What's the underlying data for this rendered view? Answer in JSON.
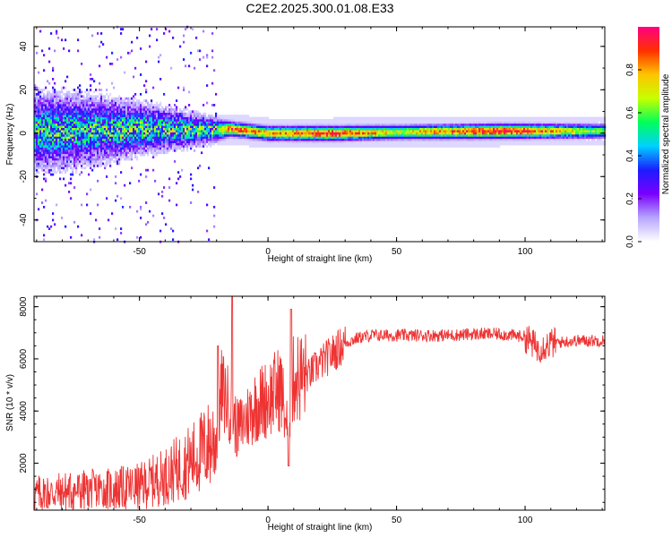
{
  "figure": {
    "title": "C2E2.2025.300.01.08.E33"
  },
  "chart_data": [
    {
      "type": "heatmap",
      "panel": "spectrogram",
      "xlabel": "Height of straight line (km)",
      "ylabel": "Frequency (Hz)",
      "xlim": [
        -91,
        131
      ],
      "ylim": [
        -50,
        49
      ],
      "xticks": [
        -50,
        0,
        50,
        100
      ],
      "yticks": [
        -40,
        -20,
        0,
        20,
        40
      ],
      "colorbar": {
        "label": "Normalized spectral amplitude",
        "range": [
          0,
          1
        ],
        "ticks": [
          0.0,
          0.2,
          0.4,
          0.6,
          0.8
        ],
        "colors": [
          "#ffffff",
          "#b6a6ff",
          "#7a00ff",
          "#1c1cff",
          "#00d0ff",
          "#00ff5a",
          "#c6ff00",
          "#ffc400",
          "#ff3000",
          "#ff0080"
        ]
      },
      "description_points": [
        {
          "x": -80,
          "center_hz": 1,
          "spread_hz": 9,
          "peak": 0.55
        },
        {
          "x": -50,
          "center_hz": 2,
          "spread_hz": 6,
          "peak": 0.6
        },
        {
          "x": -20,
          "center_hz": 1.5,
          "spread_hz": 3,
          "peak": 0.6
        },
        {
          "x": -15,
          "center_hz": 2,
          "spread_hz": 2,
          "peak": 0.9
        },
        {
          "x": 0,
          "center_hz": 0,
          "spread_hz": 2,
          "peak": 0.8
        },
        {
          "x": 25,
          "center_hz": 0,
          "spread_hz": 2,
          "peak": 0.95
        },
        {
          "x": 50,
          "center_hz": 0.5,
          "spread_hz": 2,
          "peak": 0.7
        },
        {
          "x": 90,
          "center_hz": 1,
          "spread_hz": 2,
          "peak": 1.0
        },
        {
          "x": 130,
          "center_hz": 1,
          "spread_hz": 2,
          "peak": 0.6
        }
      ]
    },
    {
      "type": "line",
      "panel": "snr",
      "xlabel": "Height of straight line (km)",
      "ylabel": "SNR (10 * v/v)",
      "xlim": [
        -91,
        131
      ],
      "ylim": [
        200,
        8400
      ],
      "xticks": [
        -50,
        0,
        50,
        100
      ],
      "yticks": [
        2000,
        4000,
        6000,
        8000
      ],
      "color": "#ee3333",
      "series": [
        {
          "name": "SNR",
          "x": [
            -91,
            -80,
            -70,
            -60,
            -50,
            -40,
            -30,
            -25,
            -20,
            -18,
            -15,
            -12,
            -10,
            -5,
            0,
            5,
            8,
            10,
            15,
            20,
            25,
            30,
            35,
            40,
            50,
            60,
            70,
            80,
            90,
            100,
            105,
            110,
            120,
            131
          ],
          "y": [
            800,
            900,
            950,
            1000,
            1100,
            1500,
            2100,
            2500,
            3000,
            4800,
            4200,
            3300,
            3500,
            4200,
            4500,
            4900,
            3000,
            5300,
            5300,
            5800,
            6200,
            6600,
            6800,
            6900,
            6900,
            6900,
            6900,
            6950,
            6950,
            6850,
            6400,
            6600,
            6700,
            6700
          ]
        }
      ]
    }
  ]
}
